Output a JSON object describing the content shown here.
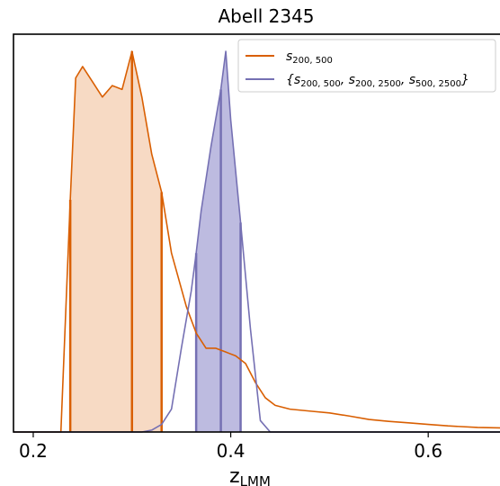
{
  "chart_data": {
    "type": "area",
    "title": "Abell 2345",
    "xlabel_main": "z",
    "xlabel_sub": "LMM",
    "ylabel": "",
    "xlim": [
      0.18,
      0.69
    ],
    "ylim": [
      0,
      1.045
    ],
    "xticks": [
      0.2,
      0.4,
      0.6
    ],
    "xtick_labels": [
      "0.2",
      "0.4",
      "0.6"
    ],
    "yticks_visible": false,
    "grid": false,
    "legend_position": "top-right",
    "series": [
      {
        "name": "s_{200,500}",
        "legend_main": "s",
        "legend_sub": "200, 500",
        "color": "#d95f02",
        "fill": "#f7dac4",
        "x": [
          0.18,
          0.228,
          0.2375,
          0.243,
          0.25,
          0.26,
          0.27,
          0.28,
          0.29,
          0.3,
          0.31,
          0.32,
          0.33,
          0.34,
          0.355,
          0.365,
          0.375,
          0.385,
          0.395,
          0.405,
          0.415,
          0.425,
          0.435,
          0.445,
          0.46,
          0.48,
          0.5,
          0.52,
          0.54,
          0.56,
          0.58,
          0.6,
          0.62,
          0.65,
          0.69
        ],
        "y": [
          0.0,
          0.0,
          0.61,
          0.93,
          0.96,
          0.92,
          0.88,
          0.91,
          0.9,
          1.0,
          0.88,
          0.73,
          0.63,
          0.47,
          0.33,
          0.26,
          0.22,
          0.22,
          0.21,
          0.2,
          0.18,
          0.13,
          0.09,
          0.07,
          0.06,
          0.055,
          0.05,
          0.042,
          0.033,
          0.028,
          0.024,
          0.02,
          0.016,
          0.012,
          0.01
        ],
        "fill_range": [
          0.2375,
          0.33
        ],
        "vertical_markers": [
          0.2375,
          0.3,
          0.33
        ]
      },
      {
        "name": "{s_{200,500}, s_{200,2500}, s_{500,2500}}",
        "legend_main": "{s",
        "legend_parts": [
          {
            "main": "{s",
            "sub": "200, 500"
          },
          {
            "main": ", s",
            "sub": "200, 2500"
          },
          {
            "main": ", s",
            "sub": "500, 2500"
          },
          {
            "main": "}",
            "sub": ""
          }
        ],
        "color": "#7570b3",
        "fill": "#bdbbe0",
        "x": [
          0.18,
          0.31,
          0.32,
          0.33,
          0.34,
          0.35,
          0.36,
          0.365,
          0.37,
          0.38,
          0.39,
          0.395,
          0.4,
          0.41,
          0.42,
          0.43,
          0.44,
          0.455,
          0.69
        ],
        "y": [
          0.0,
          0.0,
          0.005,
          0.02,
          0.06,
          0.22,
          0.37,
          0.47,
          0.58,
          0.75,
          0.9,
          1.0,
          0.82,
          0.55,
          0.27,
          0.03,
          0.0,
          0.0,
          0.0
        ],
        "fill_range": [
          0.365,
          0.41
        ],
        "vertical_markers": [
          0.365,
          0.39,
          0.41
        ]
      }
    ]
  }
}
